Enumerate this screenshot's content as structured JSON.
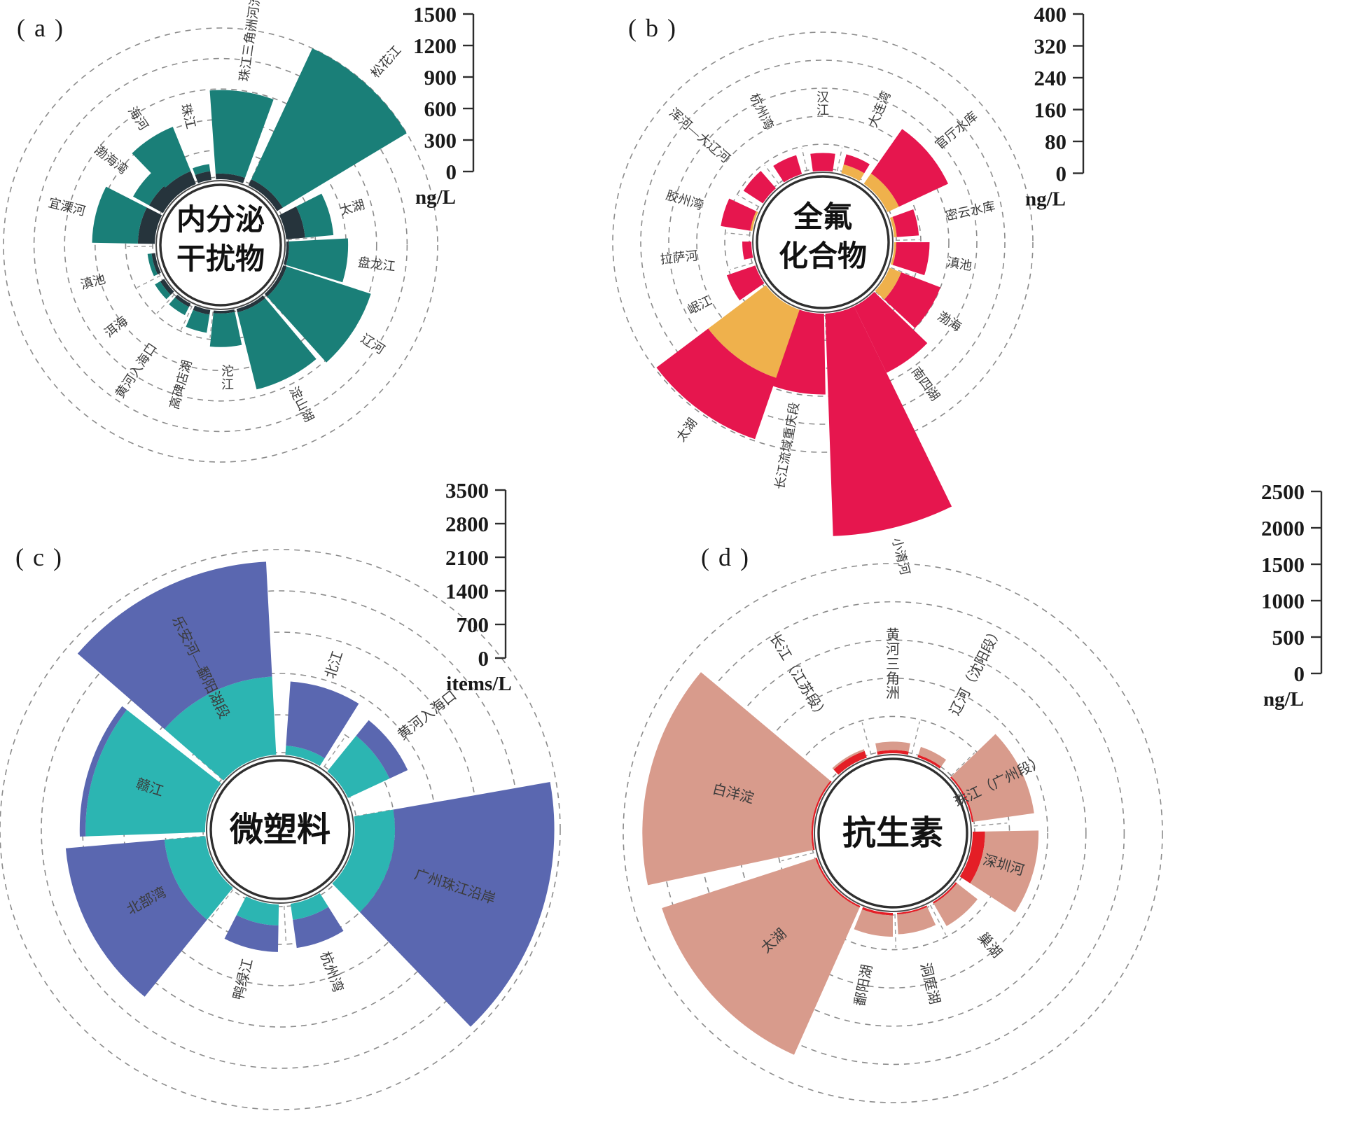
{
  "figure": {
    "background": "#ffffff",
    "grid_style": "dashed-circles",
    "description_visible_text_only": true
  },
  "chart_data": [
    {
      "id": "a",
      "panel_tag": "( a )",
      "type": "polar_bar",
      "title": "内分泌干扰物",
      "title_lines": [
        "内分泌",
        "干扰物"
      ],
      "unit": "ng/L",
      "axis_max": 1500,
      "axis_ticks": [
        1500,
        1200,
        900,
        600,
        300,
        0
      ],
      "legend_position": "none",
      "series": [
        {
          "name": "inner-segment",
          "color": "#26343c"
        },
        {
          "name": "outer-segment",
          "color": "#1a7f78"
        }
      ],
      "sites": [
        {
          "name": "珠江三角洲河流",
          "angle": 8,
          "span": 24,
          "inner": 70,
          "total": 890
        },
        {
          "name": "松花江",
          "angle": 42,
          "span": 34,
          "inner": 80,
          "total": 1500
        },
        {
          "name": "太湖",
          "angle": 74,
          "span": 22,
          "inner": 200,
          "total": 480
        },
        {
          "name": "盘龙江",
          "angle": 97,
          "span": 20,
          "inner": 40,
          "total": 620
        },
        {
          "name": "辽河",
          "angle": 123,
          "span": 30,
          "inner": 50,
          "total": 920
        },
        {
          "name": "淀山湖",
          "angle": 153,
          "span": 26,
          "inner": 50,
          "total": 830
        },
        {
          "name": "沱江",
          "angle": 177,
          "span": 18,
          "inner": 40,
          "total": 370
        },
        {
          "name": "高碑店湖",
          "angle": 196,
          "span": 14,
          "inner": 60,
          "total": 240
        },
        {
          "name": "黄河入海口",
          "angle": 214,
          "span": 14,
          "inner": 50,
          "total": 140
        },
        {
          "name": "洱海",
          "angle": 232,
          "span": 14,
          "inner": 60,
          "total": 120
        },
        {
          "name": "滇池",
          "angle": 254,
          "span": 18,
          "inner": 50,
          "total": 90
        },
        {
          "name": "宜溧河",
          "angle": 284,
          "span": 26,
          "inner": 180,
          "total": 630
        },
        {
          "name": "渤海湾",
          "angle": 308,
          "span": 18,
          "inner": 170,
          "total": 350
        },
        {
          "name": "海河",
          "angle": 327,
          "span": 22,
          "inner": 150,
          "total": 620
        },
        {
          "name": "珠江",
          "angle": 346,
          "span": 12,
          "inner": 100,
          "total": 170
        }
      ]
    },
    {
      "id": "b",
      "panel_tag": "( b )",
      "type": "polar_bar",
      "title": "全氟化合物",
      "title_lines": [
        "全氟",
        "化合物"
      ],
      "unit": "ng/L",
      "axis_max": 400,
      "axis_ticks": [
        400,
        320,
        240,
        160,
        80,
        0
      ],
      "legend_position": "none",
      "series": [
        {
          "name": "inner-segment",
          "color": "#efb14c"
        },
        {
          "name": "outer-segment",
          "color": "#e6164e"
        }
      ],
      "sites": [
        {
          "name": "汉江",
          "angle": 0,
          "span": 16,
          "inner": 0,
          "total": 55
        },
        {
          "name": "大连湾",
          "angle": 23,
          "span": 16,
          "inner": 30,
          "total": 60
        },
        {
          "name": "官厅水库",
          "angle": 50,
          "span": 30,
          "inner": 40,
          "total": 195
        },
        {
          "name": "密云水库",
          "angle": 78,
          "span": 16,
          "inner": 12,
          "total": 75
        },
        {
          "name": "滇池",
          "angle": 99,
          "span": 18,
          "inner": 10,
          "total": 105
        },
        {
          "name": "渤海",
          "angle": 122,
          "span": 22,
          "inner": 40,
          "total": 160
        },
        {
          "name": "南四湖",
          "angle": 144,
          "span": 20,
          "inner": 0,
          "total": 215
        },
        {
          "name": "小清河",
          "angle": 166,
          "span": 24,
          "inner": 0,
          "total": 640
        },
        {
          "name": "长江流域重庆段",
          "angle": 190,
          "span": 22,
          "inner": 0,
          "total": 235
        },
        {
          "name": "太湖",
          "angle": 216,
          "span": 34,
          "inner": 210,
          "total": 395
        },
        {
          "name": "岷江",
          "angle": 243,
          "span": 16,
          "inner": 0,
          "total": 90
        },
        {
          "name": "拉萨河",
          "angle": 264,
          "span": 13,
          "inner": 0,
          "total": 30
        },
        {
          "name": "胶州湾",
          "angle": 287,
          "span": 16,
          "inner": 10,
          "total": 95
        },
        {
          "name": "浑河—大辽河",
          "angle": 311,
          "span": 16,
          "inner": 0,
          "total": 70
        },
        {
          "name": "杭州湾",
          "angle": 335,
          "span": 16,
          "inner": 0,
          "total": 60
        }
      ]
    },
    {
      "id": "c",
      "panel_tag": "( c )",
      "type": "polar_bar",
      "title": "微塑料",
      "title_lines": [
        "微塑料"
      ],
      "unit": "items/L",
      "axis_max": 3500,
      "axis_ticks": [
        3500,
        2800,
        2100,
        1400,
        700,
        0
      ],
      "legend_position": "none",
      "series": [
        {
          "name": "inner-segment",
          "color": "#2cb5b2"
        },
        {
          "name": "outer-segment",
          "color": "#5a67b0"
        }
      ],
      "sites": [
        {
          "name": "北江",
          "angle": 18,
          "span": 28,
          "inner": 180,
          "total": 1270
        },
        {
          "name": "黄河入海口",
          "angle": 52,
          "span": 26,
          "inner": 800,
          "total": 1140
        },
        {
          "name": "广州珠江沿岸",
          "angle": 108,
          "span": 56,
          "inner": 700,
          "total": 3400,
          "lf": 0.55
        },
        {
          "name": "杭州湾",
          "angle": 160,
          "span": 24,
          "inner": 300,
          "total": 780
        },
        {
          "name": "鸭绿江",
          "angle": 194,
          "span": 26,
          "inner": 380,
          "total": 830
        },
        {
          "name": "北部湾",
          "angle": 242,
          "span": 46,
          "inner": 720,
          "total": 2400,
          "lf": 0.55
        },
        {
          "name": "赣江",
          "angle": 288,
          "span": 40,
          "inner": 2050,
          "total": 2150,
          "lf": 0.5
        },
        {
          "name": "乐安河—鄱阳湖段",
          "angle": 334,
          "span": 46,
          "inner": 1350,
          "total": 3300,
          "lf": 0.55
        }
      ]
    },
    {
      "id": "d",
      "panel_tag": "( d )",
      "type": "polar_bar",
      "title": "抗生素",
      "title_lines": [
        "抗生素"
      ],
      "unit": "ng/L",
      "axis_max": 2500,
      "axis_ticks": [
        2500,
        2000,
        1500,
        1000,
        500,
        0
      ],
      "legend_position": "none",
      "series": [
        {
          "name": "inner-segment",
          "color": "#e41e26"
        },
        {
          "name": "outer-segment",
          "color": "#d89b8c"
        }
      ],
      "sites": [
        {
          "name": "黄河三角洲",
          "angle": 0,
          "span": 22,
          "inner": 60,
          "total": 170
        },
        {
          "name": "辽河（沈阳段）",
          "angle": 27,
          "span": 18,
          "inner": 50,
          "total": 160
        },
        {
          "name": "珠江（广州段）",
          "angle": 64,
          "span": 36,
          "inner": 40,
          "total": 840,
          "lf": 0.62
        },
        {
          "name": "深圳河",
          "angle": 106,
          "span": 34,
          "inner": 180,
          "total": 880,
          "lf": 0.55
        },
        {
          "name": "巢湖",
          "angle": 139,
          "span": 22,
          "inner": 40,
          "total": 380
        },
        {
          "name": "洞庭湖",
          "angle": 166,
          "span": 22,
          "inner": 40,
          "total": 300
        },
        {
          "name": "鄱阳湖",
          "angle": 191,
          "span": 22,
          "inner": 50,
          "total": 330
        },
        {
          "name": "太湖",
          "angle": 228,
          "span": 48,
          "inner": 40,
          "total": 2150,
          "lf": 0.5
        },
        {
          "name": "白洋淀",
          "angle": 284,
          "span": 52,
          "inner": 40,
          "total": 2250,
          "lf": 0.5
        },
        {
          "name": "长江（江苏段）",
          "angle": 329,
          "span": 24,
          "inner": 110,
          "total": 135
        }
      ]
    }
  ]
}
